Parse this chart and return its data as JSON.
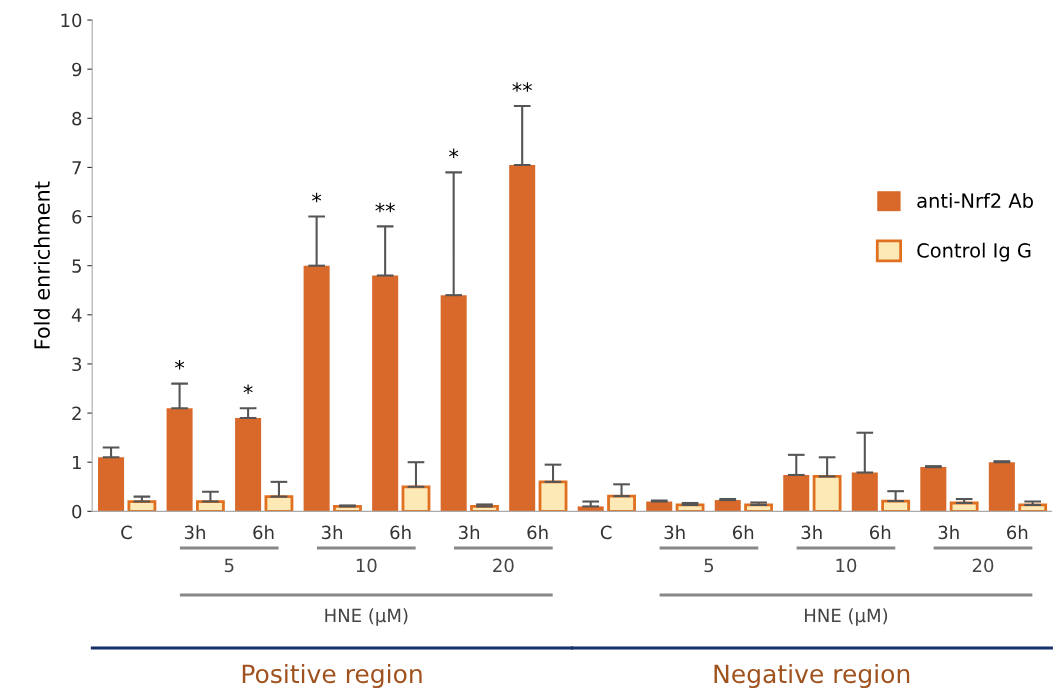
{
  "chart_data": {
    "type": "bar",
    "ylabel": "Fold enrichment",
    "categories": [
      "C",
      "3h",
      "6h",
      "3h",
      "6h",
      "3h",
      "6h",
      "C",
      "3h",
      "6h",
      "3h",
      "6h",
      "3h",
      "6h"
    ],
    "series": [
      {
        "name": "anti-Nrf2 Ab",
        "color": "#d8692a",
        "values": [
          1.1,
          2.1,
          1.9,
          5.0,
          4.8,
          4.4,
          7.05,
          0.1,
          0.2,
          0.23,
          0.74,
          0.79,
          0.9,
          1.0
        ],
        "errors": [
          0.2,
          0.5,
          0.2,
          1.0,
          1.0,
          2.5,
          1.2,
          0.1,
          0.02,
          0.02,
          0.41,
          0.81,
          0.02,
          0.02
        ]
      },
      {
        "name": "Control Ig G",
        "color": "#fde9b5",
        "values": [
          0.2,
          0.2,
          0.3,
          0.1,
          0.5,
          0.1,
          0.6,
          0.31,
          0.13,
          0.13,
          0.71,
          0.21,
          0.17,
          0.13
        ],
        "errors": [
          0.1,
          0.2,
          0.3,
          0.02,
          0.5,
          0.04,
          0.35,
          0.24,
          0.04,
          0.05,
          0.39,
          0.2,
          0.08,
          0.07
        ]
      }
    ],
    "ylim": [
      0,
      10
    ],
    "yticks": [
      0,
      1,
      2,
      3,
      4,
      5,
      6,
      7,
      8,
      9,
      10
    ],
    "grid": false,
    "legend": "right",
    "annotations": [
      "5",
      "10",
      "20",
      "HNE (µM)",
      "5",
      "10",
      "20",
      "HNE (µM)",
      "Positive region",
      "Negative region",
      "*",
      "*",
      "*",
      "**",
      "*",
      "**"
    ]
  }
}
